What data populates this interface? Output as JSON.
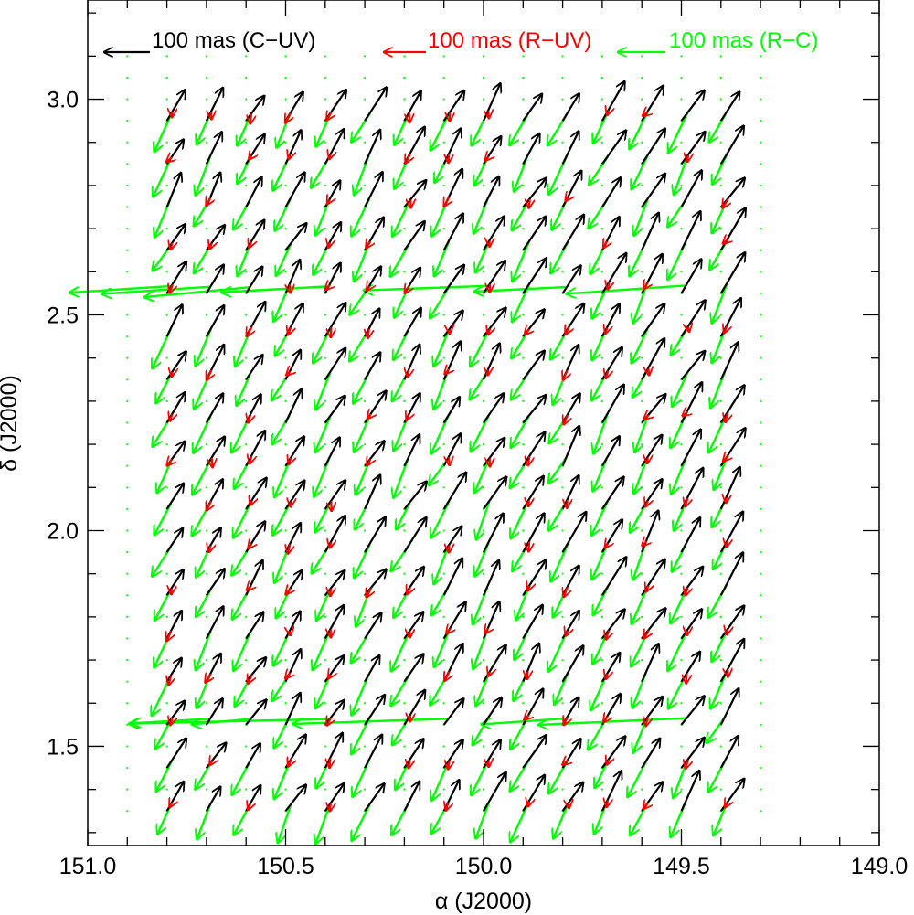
{
  "chart_data": {
    "type": "quiver",
    "xlabel": "α (J2000)",
    "ylabel": "δ (J2000)",
    "xlim": [
      151.0,
      149.0
    ],
    "ylim": [
      1.27,
      3.23
    ],
    "xticks": [
      {
        "value": 151.0,
        "label": "151.0"
      },
      {
        "value": 150.5,
        "label": "150.5"
      },
      {
        "value": 150.0,
        "label": "150.0"
      },
      {
        "value": 149.5,
        "label": "149.5"
      },
      {
        "value": 149.0,
        "label": "149.0"
      }
    ],
    "yticks": [
      {
        "value": 1.5,
        "label": "1.5"
      },
      {
        "value": 2.0,
        "label": "2.0"
      },
      {
        "value": 2.5,
        "label": "2.5"
      },
      {
        "value": 3.0,
        "label": "3.0"
      }
    ],
    "x_minor_step": 0.1,
    "y_minor_step": 0.1,
    "grid": false,
    "scale_note": "arrow lengths in mas; legend arrows = 100 mas",
    "legend": [
      {
        "name": "C-UV",
        "label": "100 mas (C−UV)",
        "color": "#000000",
        "length_mas": 100
      },
      {
        "name": "R-UV",
        "label": "100 mas (R−UV)",
        "color": "#ff0000",
        "length_mas": 100
      },
      {
        "name": "R-C",
        "label": "100 mas (R−C)",
        "color": "#00ff00",
        "length_mas": 100
      }
    ],
    "grid_sample": {
      "ra_start": 150.9,
      "ra_step": -0.1,
      "n_ra": 17,
      "dec_start": 1.35,
      "dec_step": 0.05,
      "n_dec": 36,
      "dot_color": "#00ff00"
    },
    "series": [
      {
        "name": "C-UV",
        "color": "#000000",
        "typical_vector_mas": [
          -55,
          95
        ],
        "field_note": "mostly uniform diagonal offsets, longer toward lower RA"
      },
      {
        "name": "R-C",
        "color": "#00ff00",
        "typical_vector_mas": [
          47,
          -97
        ],
        "field_note": "nearly opposite to C-UV; strong horizontal streaks near dec 1.53 and 2.53"
      },
      {
        "name": "R-UV",
        "color": "#ff0000",
        "typical_vector_mas": [
          -5,
          -15
        ],
        "field_note": "small residuals, a few larger near low RA edge"
      }
    ]
  }
}
